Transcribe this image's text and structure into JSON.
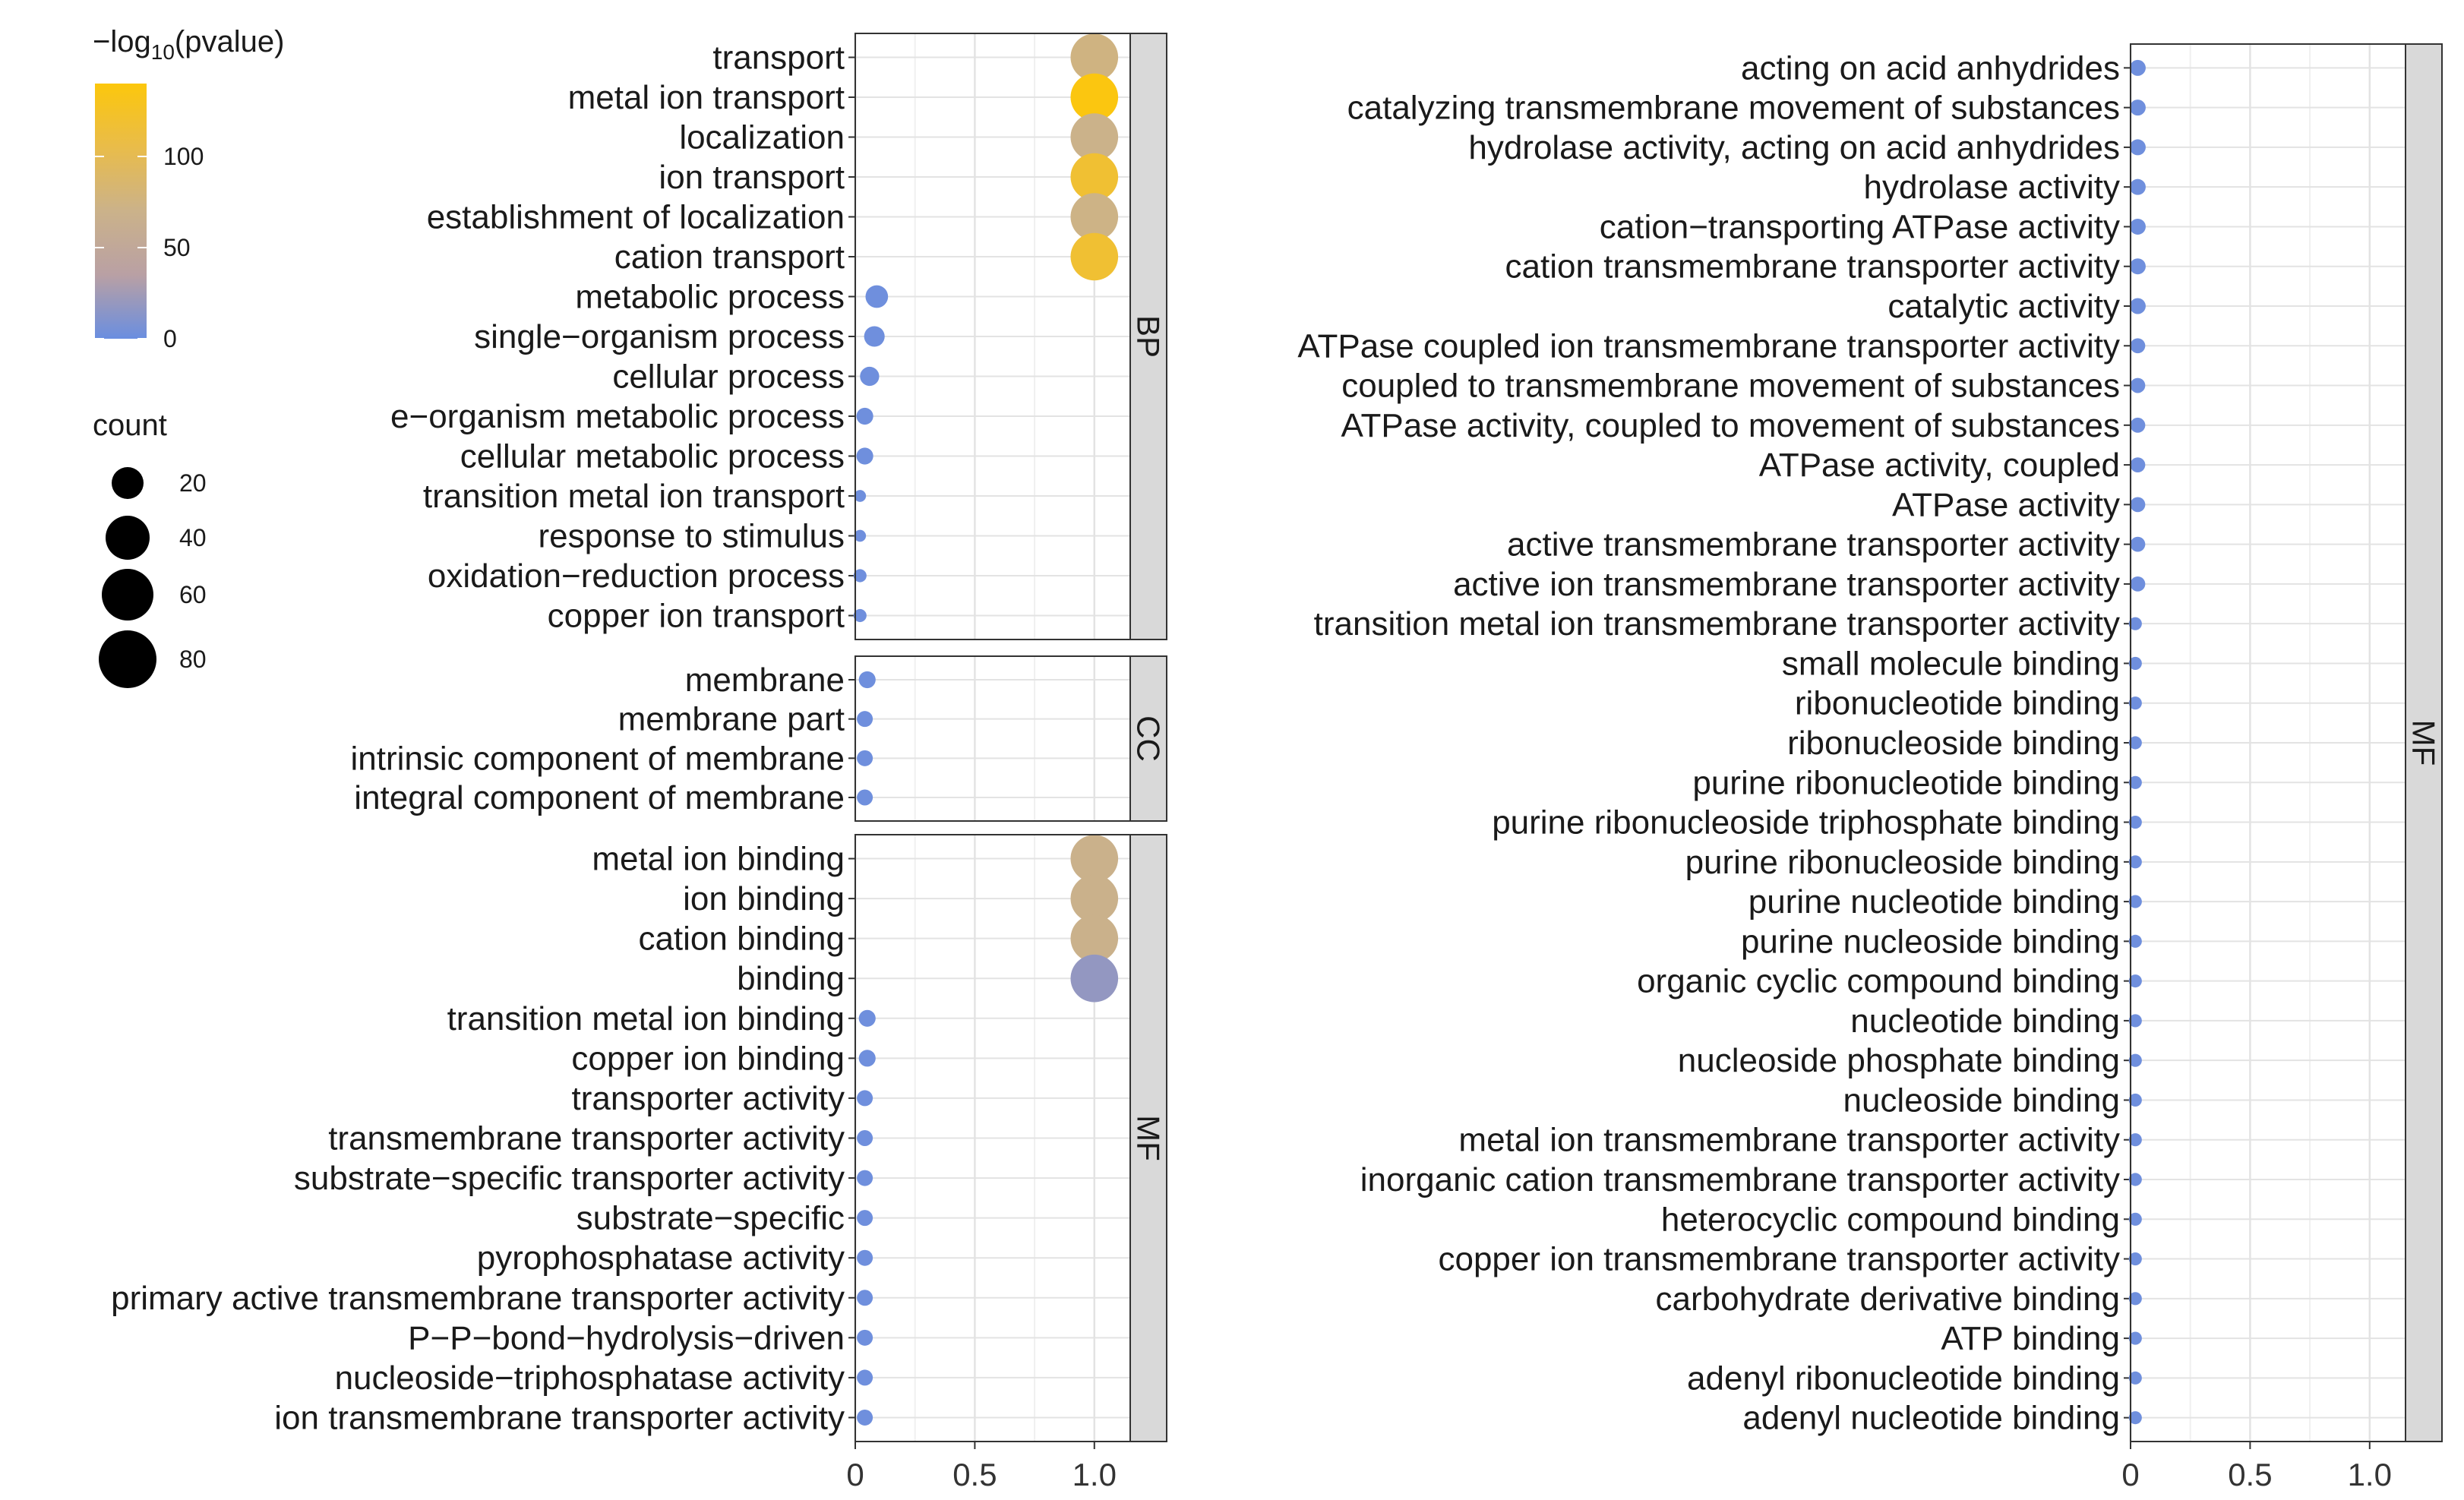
{
  "legend": {
    "color_title_prefix": "−log",
    "color_title_sub": "10",
    "color_title_suffix": "(pvalue)",
    "color_ticks": [
      "100",
      "50",
      "0"
    ],
    "color_tick_values": [
      100,
      50,
      0
    ],
    "color_range": [
      0,
      140
    ],
    "color_stops": [
      "#6a8ee0",
      "#b9a0a4",
      "#cbb28a",
      "#e9bc4a",
      "#fcc70c"
    ],
    "size_title": "count",
    "size_ticks": [
      "20",
      "40",
      "60",
      "80"
    ],
    "size_values": [
      20,
      40,
      60,
      80
    ]
  },
  "chart_data": [
    {
      "type": "scatter",
      "panel": "left",
      "xlim": [
        0,
        1.15
      ],
      "x_ticks": [
        0,
        0.5,
        1.0
      ],
      "x_tick_labels": [
        "0",
        "0.5",
        "1.0"
      ],
      "grid": true,
      "facets": [
        {
          "label": "BP",
          "terms": [
            {
              "name": "transport",
              "x": 1.0,
              "pvalue": 75,
              "count": 80
            },
            {
              "name": "metal ion transport",
              "x": 1.0,
              "pvalue": 138,
              "count": 80
            },
            {
              "name": "localization",
              "x": 1.0,
              "pvalue": 70,
              "count": 80
            },
            {
              "name": "ion transport",
              "x": 1.0,
              "pvalue": 118,
              "count": 80
            },
            {
              "name": "establishment of localization",
              "x": 1.0,
              "pvalue": 72,
              "count": 80
            },
            {
              "name": "cation transport",
              "x": 1.0,
              "pvalue": 118,
              "count": 80
            },
            {
              "name": "metabolic process",
              "x": 0.09,
              "pvalue": 2,
              "count": 18
            },
            {
              "name": "single−organism process",
              "x": 0.08,
              "pvalue": 2,
              "count": 15
            },
            {
              "name": "cellular process",
              "x": 0.06,
              "pvalue": 2,
              "count": 13
            },
            {
              "name": "e−organism metabolic process",
              "x": 0.04,
              "pvalue": 2,
              "count": 10
            },
            {
              "name": "cellular metabolic process",
              "x": 0.04,
              "pvalue": 2,
              "count": 10
            },
            {
              "name": "transition metal ion transport",
              "x": 0.02,
              "pvalue": 2,
              "count": 5
            },
            {
              "name": "response to stimulus",
              "x": 0.02,
              "pvalue": 2,
              "count": 5
            },
            {
              "name": "oxidation−reduction process",
              "x": 0.02,
              "pvalue": 2,
              "count": 6
            },
            {
              "name": "copper ion transport",
              "x": 0.02,
              "pvalue": 2,
              "count": 6
            }
          ]
        },
        {
          "label": "CC",
          "terms": [
            {
              "name": "membrane",
              "x": 0.05,
              "pvalue": 2,
              "count": 10
            },
            {
              "name": "membrane part",
              "x": 0.04,
              "pvalue": 2,
              "count": 9
            },
            {
              "name": "intrinsic component of membrane",
              "x": 0.04,
              "pvalue": 2,
              "count": 9
            },
            {
              "name": "integral component of membrane",
              "x": 0.04,
              "pvalue": 2,
              "count": 9
            }
          ]
        },
        {
          "label": "MF",
          "terms": [
            {
              "name": "metal ion binding",
              "x": 1.0,
              "pvalue": 68,
              "count": 80
            },
            {
              "name": "ion binding",
              "x": 1.0,
              "pvalue": 68,
              "count": 80
            },
            {
              "name": "cation binding",
              "x": 1.0,
              "pvalue": 68,
              "count": 80
            },
            {
              "name": "binding",
              "x": 1.0,
              "pvalue": 18,
              "count": 80
            },
            {
              "name": "transition metal ion binding",
              "x": 0.05,
              "pvalue": 2,
              "count": 10
            },
            {
              "name": "copper ion binding",
              "x": 0.05,
              "pvalue": 2,
              "count": 10
            },
            {
              "name": "transporter activity",
              "x": 0.04,
              "pvalue": 2,
              "count": 9
            },
            {
              "name": "transmembrane transporter activity",
              "x": 0.04,
              "pvalue": 2,
              "count": 9
            },
            {
              "name": "substrate−specific transporter activity",
              "x": 0.04,
              "pvalue": 2,
              "count": 9
            },
            {
              "name": "substrate−specific",
              "x": 0.04,
              "pvalue": 2,
              "count": 9
            },
            {
              "name": "pyrophosphatase activity",
              "x": 0.04,
              "pvalue": 2,
              "count": 9
            },
            {
              "name": "primary active transmembrane transporter activity",
              "x": 0.04,
              "pvalue": 2,
              "count": 9
            },
            {
              "name": "P−P−bond−hydrolysis−driven",
              "x": 0.04,
              "pvalue": 2,
              "count": 9
            },
            {
              "name": "nucleoside−triphosphatase activity",
              "x": 0.04,
              "pvalue": 2,
              "count": 9
            },
            {
              "name": "ion transmembrane transporter activity",
              "x": 0.04,
              "pvalue": 2,
              "count": 9
            }
          ]
        }
      ]
    },
    {
      "type": "scatter",
      "panel": "right",
      "xlim": [
        0,
        1.15
      ],
      "x_ticks": [
        0,
        0.5,
        1.0
      ],
      "x_tick_labels": [
        "0",
        "0.5",
        "1.0"
      ],
      "grid": true,
      "facets": [
        {
          "label": "MF",
          "terms": [
            {
              "name": "acting on acid anhydrides",
              "x": 0.03,
              "pvalue": 2,
              "count": 9
            },
            {
              "name": "catalyzing transmembrane movement of substances",
              "x": 0.03,
              "pvalue": 2,
              "count": 9
            },
            {
              "name": "hydrolase activity, acting on acid anhydrides",
              "x": 0.03,
              "pvalue": 2,
              "count": 9
            },
            {
              "name": "hydrolase activity",
              "x": 0.03,
              "pvalue": 2,
              "count": 9
            },
            {
              "name": "cation−transporting ATPase activity",
              "x": 0.03,
              "pvalue": 2,
              "count": 9
            },
            {
              "name": "cation transmembrane transporter activity",
              "x": 0.03,
              "pvalue": 2,
              "count": 9
            },
            {
              "name": "catalytic activity",
              "x": 0.03,
              "pvalue": 2,
              "count": 9
            },
            {
              "name": "ATPase coupled ion transmembrane transporter activity",
              "x": 0.03,
              "pvalue": 2,
              "count": 8
            },
            {
              "name": "coupled to transmembrane movement of substances",
              "x": 0.03,
              "pvalue": 2,
              "count": 8
            },
            {
              "name": "ATPase activity, coupled to movement of substances",
              "x": 0.03,
              "pvalue": 2,
              "count": 8
            },
            {
              "name": "ATPase activity, coupled",
              "x": 0.03,
              "pvalue": 2,
              "count": 8
            },
            {
              "name": "ATPase activity",
              "x": 0.03,
              "pvalue": 2,
              "count": 8
            },
            {
              "name": "active transmembrane transporter activity",
              "x": 0.03,
              "pvalue": 2,
              "count": 8
            },
            {
              "name": "active ion transmembrane transporter activity",
              "x": 0.03,
              "pvalue": 2,
              "count": 8
            },
            {
              "name": "transition metal ion transmembrane transporter activity",
              "x": 0.02,
              "pvalue": 2,
              "count": 6
            },
            {
              "name": "small molecule binding",
              "x": 0.02,
              "pvalue": 2,
              "count": 6
            },
            {
              "name": "ribonucleotide binding",
              "x": 0.02,
              "pvalue": 2,
              "count": 6
            },
            {
              "name": "ribonucleoside binding",
              "x": 0.02,
              "pvalue": 2,
              "count": 6
            },
            {
              "name": "purine ribonucleotide binding",
              "x": 0.02,
              "pvalue": 2,
              "count": 6
            },
            {
              "name": "purine ribonucleoside triphosphate binding",
              "x": 0.02,
              "pvalue": 2,
              "count": 6
            },
            {
              "name": "purine ribonucleoside binding",
              "x": 0.02,
              "pvalue": 2,
              "count": 6
            },
            {
              "name": "purine nucleotide binding",
              "x": 0.02,
              "pvalue": 2,
              "count": 6
            },
            {
              "name": "purine nucleoside binding",
              "x": 0.02,
              "pvalue": 2,
              "count": 6
            },
            {
              "name": "organic cyclic compound binding",
              "x": 0.02,
              "pvalue": 2,
              "count": 6
            },
            {
              "name": "nucleotide binding",
              "x": 0.02,
              "pvalue": 2,
              "count": 6
            },
            {
              "name": "nucleoside phosphate binding",
              "x": 0.02,
              "pvalue": 2,
              "count": 6
            },
            {
              "name": "nucleoside binding",
              "x": 0.02,
              "pvalue": 2,
              "count": 6
            },
            {
              "name": "metal ion transmembrane transporter activity",
              "x": 0.02,
              "pvalue": 2,
              "count": 6
            },
            {
              "name": "inorganic cation transmembrane transporter activity",
              "x": 0.02,
              "pvalue": 2,
              "count": 6
            },
            {
              "name": "heterocyclic compound binding",
              "x": 0.02,
              "pvalue": 2,
              "count": 6
            },
            {
              "name": "copper ion transmembrane transporter activity",
              "x": 0.02,
              "pvalue": 2,
              "count": 6
            },
            {
              "name": "carbohydrate derivative binding",
              "x": 0.02,
              "pvalue": 2,
              "count": 6
            },
            {
              "name": "ATP binding",
              "x": 0.02,
              "pvalue": 2,
              "count": 6
            },
            {
              "name": "adenyl ribonucleotide binding",
              "x": 0.02,
              "pvalue": 2,
              "count": 6
            },
            {
              "name": "adenyl nucleotide binding",
              "x": 0.02,
              "pvalue": 2,
              "count": 6
            }
          ]
        }
      ]
    }
  ]
}
